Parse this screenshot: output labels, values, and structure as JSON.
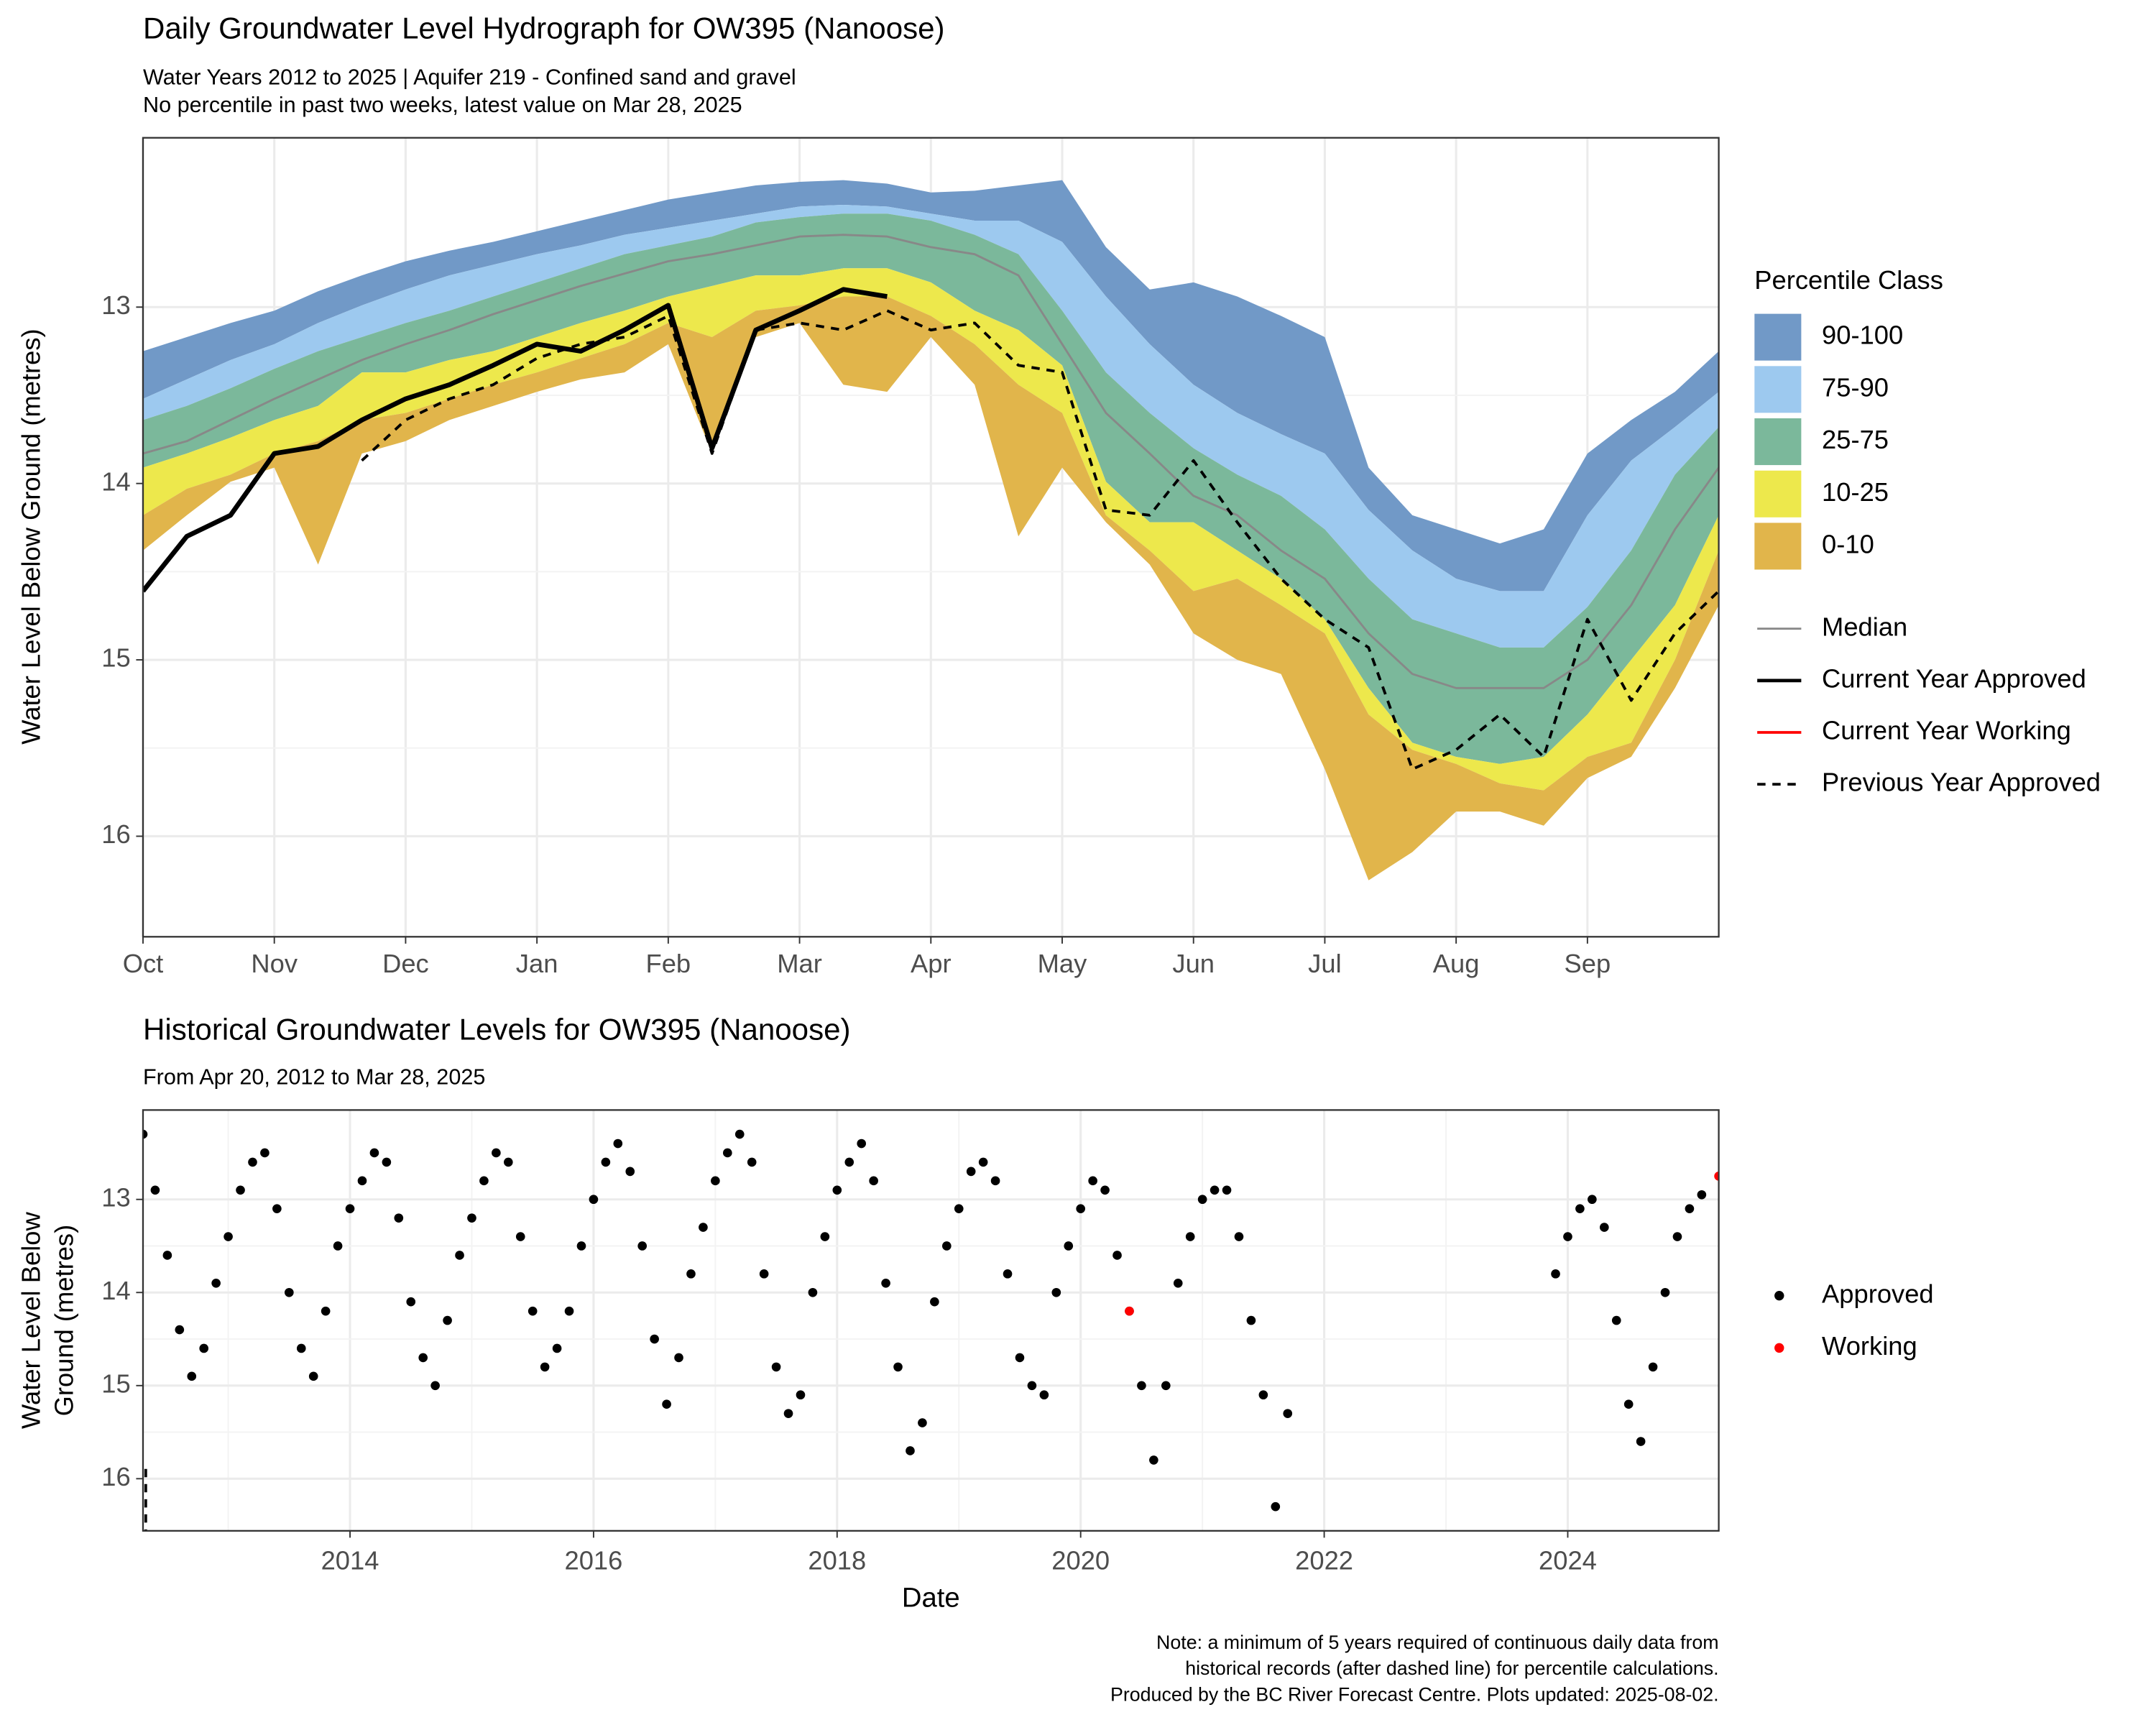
{
  "chart_data": [
    {
      "type": "area",
      "title": "Daily Groundwater Level Hydrograph for OW395 (Nanoose)",
      "subtitle": [
        "Water Years 2012 to 2025 | Aquifer 219 - Confined sand and gravel",
        "No percentile in past two weeks, latest value on Mar 28, 2025"
      ],
      "y_label": "Water Level Below Ground (metres)",
      "legend_title": "Percentile Class",
      "categories": [
        "Oct",
        null,
        null,
        "Nov",
        null,
        null,
        "Dec",
        null,
        null,
        "Jan",
        null,
        null,
        "Feb",
        null,
        null,
        "Mar",
        null,
        null,
        "Apr",
        null,
        null,
        "May",
        null,
        null,
        "Jun",
        null,
        null,
        "Jul",
        null,
        null,
        "Aug",
        null,
        null,
        "Sep",
        null,
        null,
        null
      ],
      "ylim": [
        12.04,
        16.57
      ],
      "yticks": [
        13,
        14,
        15,
        16
      ],
      "y_reversed": true,
      "grid": true,
      "bands": [
        {
          "name": "90-100",
          "color": "#7199c7",
          "values": [
            13.25,
            13.17,
            13.09,
            13.02,
            12.91,
            12.82,
            12.74,
            12.68,
            12.63,
            12.57,
            12.51,
            12.45,
            12.39,
            12.35,
            12.31,
            12.29,
            12.28,
            12.3,
            12.35,
            12.34,
            12.31,
            12.28,
            12.66,
            12.9,
            12.86,
            12.94,
            13.05,
            13.17,
            13.91,
            14.18,
            14.26,
            14.34,
            14.26,
            13.83,
            13.64,
            13.48,
            13.25
          ]
        },
        {
          "name": "75-90",
          "color": "#9dc9ef",
          "values": [
            13.52,
            13.41,
            13.3,
            13.21,
            13.09,
            12.99,
            12.9,
            12.82,
            12.76,
            12.7,
            12.65,
            12.59,
            12.55,
            12.51,
            12.47,
            12.43,
            12.42,
            12.43,
            12.47,
            12.51,
            12.51,
            12.63,
            12.94,
            13.21,
            13.44,
            13.6,
            13.72,
            13.83,
            14.15,
            14.38,
            14.54,
            14.61,
            14.61,
            14.18,
            13.87,
            13.68,
            13.48
          ]
        },
        {
          "name": "25-75",
          "color": "#7bb89b",
          "values": [
            13.64,
            13.56,
            13.46,
            13.35,
            13.25,
            13.17,
            13.09,
            13.02,
            12.94,
            12.86,
            12.78,
            12.7,
            12.65,
            12.6,
            12.52,
            12.49,
            12.47,
            12.47,
            12.51,
            12.59,
            12.7,
            13.02,
            13.37,
            13.6,
            13.8,
            13.95,
            14.07,
            14.26,
            14.54,
            14.77,
            14.85,
            14.93,
            14.93,
            14.7,
            14.38,
            13.95,
            13.68
          ]
        },
        {
          "name": "10-25",
          "color": "#ede84c",
          "values": [
            13.91,
            13.83,
            13.74,
            13.64,
            13.56,
            13.37,
            13.37,
            13.3,
            13.25,
            13.17,
            13.09,
            13.02,
            12.94,
            12.88,
            12.82,
            12.82,
            12.78,
            12.78,
            12.86,
            13.02,
            13.13,
            13.33,
            13.99,
            14.22,
            14.22,
            14.38,
            14.54,
            14.77,
            15.16,
            15.47,
            15.55,
            15.59,
            15.55,
            15.31,
            15.0,
            14.69,
            14.18
          ]
        },
        {
          "name": "0-10",
          "color": "#e1b54b",
          "values": [
            14.18,
            14.03,
            13.95,
            13.83,
            13.76,
            13.64,
            13.6,
            13.52,
            13.44,
            13.37,
            13.29,
            13.21,
            13.09,
            13.17,
            13.02,
            12.99,
            12.94,
            12.94,
            13.05,
            13.21,
            13.44,
            13.6,
            14.18,
            14.38,
            14.61,
            14.54,
            14.69,
            14.85,
            15.31,
            15.51,
            15.59,
            15.7,
            15.74,
            15.55,
            15.47,
            15.0,
            14.38
          ]
        }
      ],
      "band_floor": [
        14.38,
        14.18,
        13.99,
        13.91,
        14.46,
        13.83,
        13.76,
        13.64,
        13.56,
        13.48,
        13.41,
        13.37,
        13.21,
        13.83,
        13.17,
        13.09,
        13.44,
        13.48,
        13.17,
        13.44,
        14.3,
        13.91,
        14.22,
        14.46,
        14.85,
        15.0,
        15.08,
        15.62,
        16.25,
        16.09,
        15.86,
        15.86,
        15.94,
        15.67,
        15.55,
        15.16,
        14.69
      ],
      "series": [
        {
          "name": "Median",
          "color": "#888888",
          "width": 1.5,
          "dash": false,
          "values": [
            13.83,
            13.76,
            13.64,
            13.52,
            13.41,
            13.3,
            13.21,
            13.13,
            13.04,
            12.96,
            12.88,
            12.81,
            12.74,
            12.7,
            12.65,
            12.6,
            12.59,
            12.6,
            12.66,
            12.7,
            12.82,
            13.21,
            13.6,
            13.83,
            14.07,
            14.18,
            14.38,
            14.54,
            14.85,
            15.08,
            15.16,
            15.16,
            15.16,
            15.0,
            14.69,
            14.26,
            13.91
          ]
        },
        {
          "name": "Current Year Approved",
          "color": "#000000",
          "width": 3.5,
          "dash": false,
          "values": [
            14.61,
            14.3,
            14.18,
            13.83,
            13.79,
            13.64,
            13.52,
            13.44,
            13.33,
            13.21,
            13.25,
            13.13,
            12.99,
            13.8,
            13.13,
            13.02,
            12.9,
            12.94,
            null,
            null,
            null,
            null,
            null,
            null,
            null,
            null,
            null,
            null,
            null,
            null,
            null,
            null,
            null,
            null,
            null,
            null,
            null
          ]
        },
        {
          "name": "Current Year Working",
          "color": "#ff0000",
          "width": 2,
          "dash": false,
          "values": [
            null,
            null,
            null,
            null,
            null,
            null,
            null,
            null,
            null,
            null,
            null,
            null,
            null,
            null,
            null,
            null,
            null,
            null,
            null,
            null,
            null,
            null,
            null,
            null,
            null,
            null,
            null,
            null,
            null,
            null,
            null,
            null,
            null,
            null,
            null,
            null,
            null
          ]
        },
        {
          "name": "Previous Year Approved",
          "color": "#000000",
          "width": 2,
          "dash": true,
          "values": [
            null,
            null,
            null,
            null,
            null,
            13.87,
            13.64,
            13.52,
            13.44,
            13.29,
            13.21,
            13.17,
            13.05,
            13.83,
            13.13,
            13.09,
            13.13,
            13.02,
            13.13,
            13.09,
            13.33,
            13.37,
            14.15,
            14.18,
            13.87,
            14.22,
            14.54,
            14.77,
            14.93,
            15.62,
            15.51,
            15.31,
            15.55,
            14.77,
            15.23,
            14.85,
            14.61
          ]
        }
      ]
    },
    {
      "type": "scatter",
      "title": "Historical Groundwater Levels for OW395 (Nanoose)",
      "subtitle": "From Apr 20, 2012 to Mar 28, 2025",
      "x_label": "Date",
      "y_label": [
        "Water Level Below",
        "Ground (metres)"
      ],
      "xlim": [
        2012.3,
        2025.24
      ],
      "xticks": [
        2014,
        2016,
        2018,
        2020,
        2022,
        2024
      ],
      "ylim": [
        12.04,
        16.56
      ],
      "yticks": [
        13,
        14,
        15,
        16
      ],
      "y_reversed": true,
      "grid": true,
      "series": [
        {
          "name": "Approved",
          "color": "#000000",
          "x": [
            2012.3,
            2012.4,
            2012.5,
            2012.6,
            2012.7,
            2012.8,
            2012.9,
            2013.0,
            2013.1,
            2013.2,
            2013.3,
            2013.4,
            2013.5,
            2013.6,
            2013.7,
            2013.8,
            2013.9,
            2014.0,
            2014.1,
            2014.2,
            2014.3,
            2014.4,
            2014.5,
            2014.6,
            2014.7,
            2014.8,
            2014.9,
            2015.0,
            2015.1,
            2015.2,
            2015.3,
            2015.4,
            2015.5,
            2015.6,
            2015.7,
            2015.8,
            2015.9,
            2016.0,
            2016.1,
            2016.2,
            2016.3,
            2016.4,
            2016.5,
            2016.6,
            2016.7,
            2016.8,
            2016.9,
            2017.0,
            2017.1,
            2017.2,
            2017.3,
            2017.4,
            2017.5,
            2017.6,
            2017.7,
            2017.8,
            2017.9,
            2018.0,
            2018.1,
            2018.2,
            2018.3,
            2018.4,
            2018.5,
            2018.6,
            2018.7,
            2018.8,
            2018.9,
            2019.0,
            2019.1,
            2019.2,
            2019.3,
            2019.4,
            2019.5,
            2019.6,
            2019.7,
            2019.8,
            2019.9,
            2020.0,
            2020.1,
            2020.2,
            2020.3,
            2020.4,
            2020.5,
            2020.6,
            2020.7,
            2020.8,
            2020.9,
            2021.0,
            2021.1,
            2021.2,
            2021.3,
            2021.4,
            2021.5,
            2021.6,
            2021.7,
            2023.9,
            2024.0,
            2024.1,
            2024.2,
            2024.3,
            2024.4,
            2024.5,
            2024.6,
            2024.7,
            2024.8,
            2024.9,
            2025.0,
            2025.1
          ],
          "values": [
            12.3,
            12.9,
            13.6,
            14.4,
            14.9,
            14.6,
            13.9,
            13.4,
            12.9,
            12.6,
            12.5,
            13.1,
            14.0,
            14.6,
            14.9,
            14.2,
            13.5,
            13.1,
            12.8,
            12.5,
            12.6,
            13.2,
            14.1,
            14.7,
            15.0,
            14.3,
            13.6,
            13.2,
            12.8,
            12.5,
            12.6,
            13.4,
            14.2,
            14.8,
            14.6,
            14.2,
            13.5,
            13.0,
            12.6,
            12.4,
            12.7,
            13.5,
            14.5,
            15.2,
            14.7,
            13.8,
            13.3,
            12.8,
            12.5,
            12.3,
            12.6,
            13.8,
            14.8,
            15.3,
            15.1,
            14.0,
            13.4,
            12.9,
            12.6,
            12.4,
            12.8,
            13.9,
            14.8,
            15.7,
            15.4,
            14.1,
            13.5,
            13.1,
            12.7,
            12.6,
            12.8,
            13.8,
            14.7,
            15.0,
            15.1,
            14.0,
            13.5,
            13.1,
            12.8,
            12.9,
            13.6,
            14.2,
            15.0,
            15.8,
            15.0,
            13.9,
            13.4,
            13.0,
            12.9,
            12.9,
            13.4,
            14.3,
            15.1,
            16.3,
            15.3,
            13.8,
            13.4,
            13.1,
            13.0,
            13.3,
            14.3,
            15.2,
            15.6,
            14.8,
            14.0,
            13.4,
            13.1,
            12.95
          ]
        },
        {
          "name": "Working",
          "color": "#ff0000",
          "x": [
            2020.4,
            2025.24
          ],
          "values": [
            14.2,
            12.75
          ]
        }
      ]
    }
  ],
  "note": [
    "Note: a minimum of 5 years required of continuous daily data from",
    "historical records (after dashed line) for percentile calculations.",
    "Produced by the BC River Forecast Centre. Plots updated: 2025-08-02."
  ]
}
